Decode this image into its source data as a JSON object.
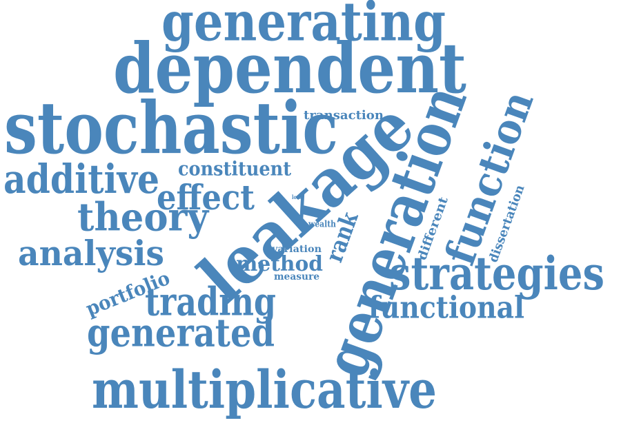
{
  "colors": {
    "word": "#4a86bb",
    "background": "#ffffff"
  },
  "words": [
    {
      "id": "generating",
      "text": "generating"
    },
    {
      "id": "dependent",
      "text": "dependent"
    },
    {
      "id": "stochastic",
      "text": "stochastic"
    },
    {
      "id": "leakage",
      "text": "leakage"
    },
    {
      "id": "generation",
      "text": "generation"
    },
    {
      "id": "function",
      "text": "function"
    },
    {
      "id": "additive",
      "text": "additive"
    },
    {
      "id": "constituent",
      "text": "constituent"
    },
    {
      "id": "transaction",
      "text": "transaction"
    },
    {
      "id": "effect",
      "text": "effect"
    },
    {
      "id": "theory",
      "text": "theory"
    },
    {
      "id": "analysis",
      "text": "analysis"
    },
    {
      "id": "loss",
      "text": "loss"
    },
    {
      "id": "wealth",
      "text": "wealth"
    },
    {
      "id": "rank",
      "text": "rank"
    },
    {
      "id": "different",
      "text": "different"
    },
    {
      "id": "dissertation",
      "text": "dissertation"
    },
    {
      "id": "variation",
      "text": "variation"
    },
    {
      "id": "method",
      "text": "method"
    },
    {
      "id": "measure",
      "text": "measure"
    },
    {
      "id": "portfolio",
      "text": "portfolio"
    },
    {
      "id": "trading",
      "text": "trading"
    },
    {
      "id": "strategies",
      "text": "strategies"
    },
    {
      "id": "functional",
      "text": "functional"
    },
    {
      "id": "generated",
      "text": "generated"
    },
    {
      "id": "multiplicative",
      "text": "multiplicative"
    }
  ]
}
